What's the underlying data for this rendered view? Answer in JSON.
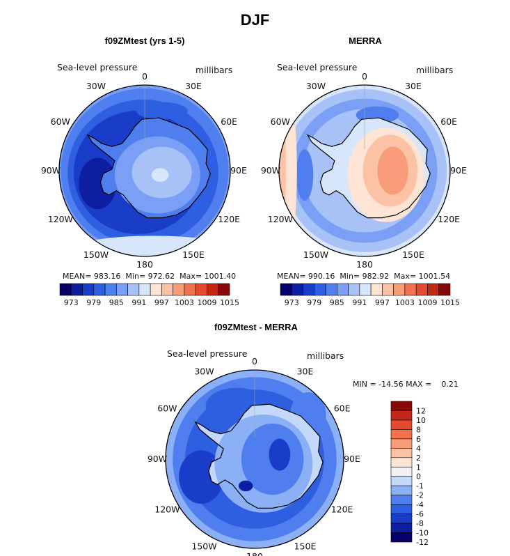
{
  "main_title": "DJF",
  "colors": {
    "scale_22": [
      "#08006b",
      "#0d1ea1",
      "#1a3dc9",
      "#2e5fe0",
      "#4f7fef",
      "#7a9ff4",
      "#a8c2f8",
      "#d8e6fb",
      "#fde4d4",
      "#fbc2a6",
      "#f79b78",
      "#f2724f",
      "#e44a2e",
      "#c12818",
      "#8a0808"
    ],
    "diff_colors": [
      "#08006b",
      "#0d1ea1",
      "#1a3dc9",
      "#2e5fe0",
      "#4f7fef",
      "#8bb0f6",
      "#c4d8fa",
      "#f2f2f2",
      "#fde4d4",
      "#fbc2a6",
      "#f79b78",
      "#f2724f",
      "#e44a2e",
      "#c12818",
      "#8a0808"
    ]
  },
  "longitude_labels": [
    "0",
    "30E",
    "60E",
    "90E",
    "120E",
    "150E",
    "180",
    "150W",
    "120W",
    "90W",
    "60W",
    "30W"
  ],
  "panels": [
    {
      "title": "f09ZMtest (yrs 1-5)",
      "left_label": "Sea-level pressure",
      "right_label": "millibars",
      "stats": {
        "mean_label": "MEAN=",
        "mean": "983.16",
        "min_label": "Min=",
        "min": "972.62",
        "max_label": "Max=",
        "max": "1001.40"
      }
    },
    {
      "title": "MERRA",
      "left_label": "Sea-level pressure",
      "right_label": "millibars",
      "stats": {
        "mean_label": "MEAN=",
        "mean": "990.16",
        "min_label": "Min=",
        "min": "982.92",
        "max_label": "Max=",
        "max": "1001.54"
      }
    },
    {
      "title": "f09ZMtest - MERRA",
      "left_label": "Sea-level pressure",
      "right_label": "millibars",
      "stats": {
        "range_text": "MIN = -14.56 MAX =    0.21"
      }
    }
  ],
  "chart_data": [
    {
      "type": "heatmap",
      "title": "f09ZMtest (yrs 1-5)",
      "projection": "south polar stereographic",
      "variable": "Sea-level pressure",
      "units": "millibars",
      "colorbar_ticks": [
        "973",
        "979",
        "985",
        "991",
        "997",
        "1003",
        "1009",
        "1015"
      ],
      "colorbar_levels": [
        973,
        976,
        979,
        982,
        985,
        988,
        991,
        994,
        997,
        1000,
        1003,
        1006,
        1009,
        1012,
        1015
      ],
      "mean": 983.16,
      "min": 972.62,
      "max": 1001.4
    },
    {
      "type": "heatmap",
      "title": "MERRA",
      "projection": "south polar stereographic",
      "variable": "Sea-level pressure",
      "units": "millibars",
      "colorbar_ticks": [
        "973",
        "979",
        "985",
        "991",
        "997",
        "1003",
        "1009",
        "1015"
      ],
      "colorbar_levels": [
        973,
        976,
        979,
        982,
        985,
        988,
        991,
        994,
        997,
        1000,
        1003,
        1006,
        1009,
        1012,
        1015
      ],
      "mean": 990.16,
      "min": 982.92,
      "max": 1001.54
    },
    {
      "type": "heatmap",
      "title": "f09ZMtest - MERRA",
      "projection": "south polar stereographic",
      "variable": "Sea-level pressure",
      "units": "millibars",
      "colorbar_ticks": [
        "12",
        "10",
        "8",
        "6",
        "4",
        "2",
        "1",
        "0",
        "-1",
        "-2",
        "-4",
        "-6",
        "-8",
        "-10",
        "-12"
      ],
      "min": -14.56,
      "max": 0.21
    }
  ]
}
